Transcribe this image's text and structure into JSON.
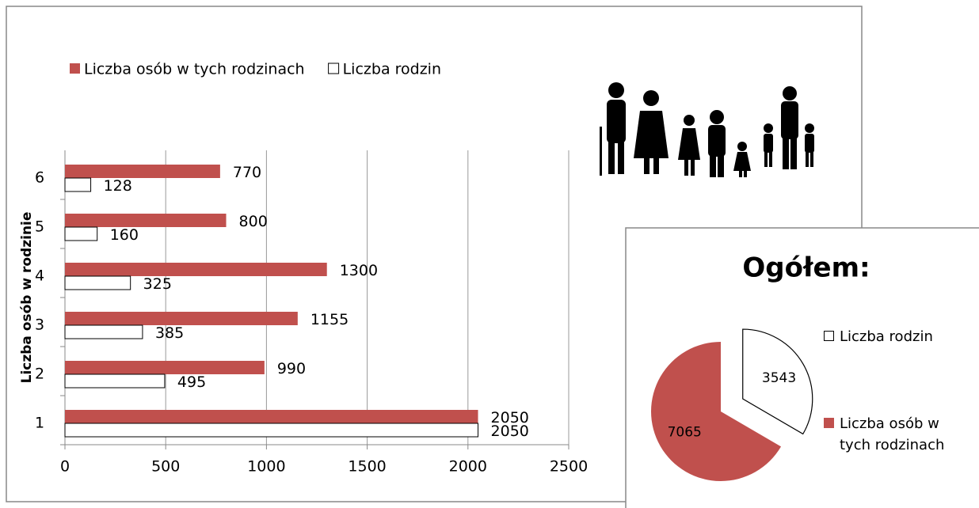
{
  "chart_data": [
    {
      "type": "bar",
      "orientation": "horizontal",
      "ylabel": "Liczba osób w rodzinie",
      "categories": [
        "1",
        "2",
        "3",
        "4",
        "5",
        "6"
      ],
      "series": [
        {
          "name": "Liczba osób w tych rodzinach",
          "color": "#c0504d",
          "values": [
            2050,
            990,
            1155,
            1300,
            800,
            770
          ]
        },
        {
          "name": "Liczba rodzin",
          "color": "#ffffff",
          "values": [
            2050,
            495,
            385,
            325,
            160,
            128
          ]
        }
      ],
      "xlim": [
        0,
        2500
      ],
      "xticks": [
        0,
        500,
        1000,
        1500,
        2000,
        2500
      ],
      "grid": true,
      "legend": "top"
    },
    {
      "type": "pie",
      "title": "Ogółem:",
      "categories": [
        "Liczba rodzin",
        "Liczba osób w tych rodzinach"
      ],
      "values": [
        3543,
        7065
      ],
      "colors": [
        "#ffffff",
        "#c0504d"
      ],
      "legend": "right"
    }
  ]
}
